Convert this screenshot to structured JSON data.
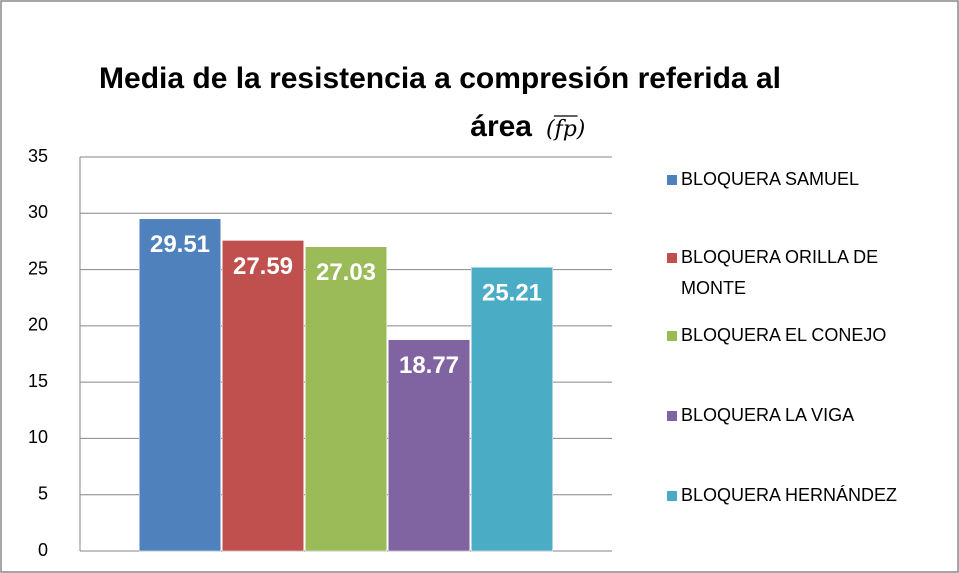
{
  "chart_data": {
    "type": "bar",
    "title": "Media de la resistencia a compresión referida al área",
    "title_symbol": "(fp)",
    "categories": [
      null
    ],
    "series": [
      {
        "name": "BLOQUERA SAMUEL",
        "color": "#4f81bd",
        "values": [
          29.51
        ]
      },
      {
        "name": "BLOQUERA ORILLA DE MONTE",
        "color": "#c0504d",
        "values": [
          27.59
        ]
      },
      {
        "name": "BLOQUERA EL CONEJO",
        "color": "#9bbb59",
        "values": [
          27.03
        ]
      },
      {
        "name": "BLOQUERA LA VIGA",
        "color": "#8064a2",
        "values": [
          18.77
        ]
      },
      {
        "name": "BLOQUERA HERNÁNDEZ",
        "color": "#4bacc6",
        "values": [
          25.21
        ]
      }
    ],
    "ylim": [
      0,
      35
    ],
    "yticks": [
      0,
      5,
      10,
      15,
      20,
      25,
      30,
      35
    ],
    "grid": true,
    "legend": "right"
  }
}
